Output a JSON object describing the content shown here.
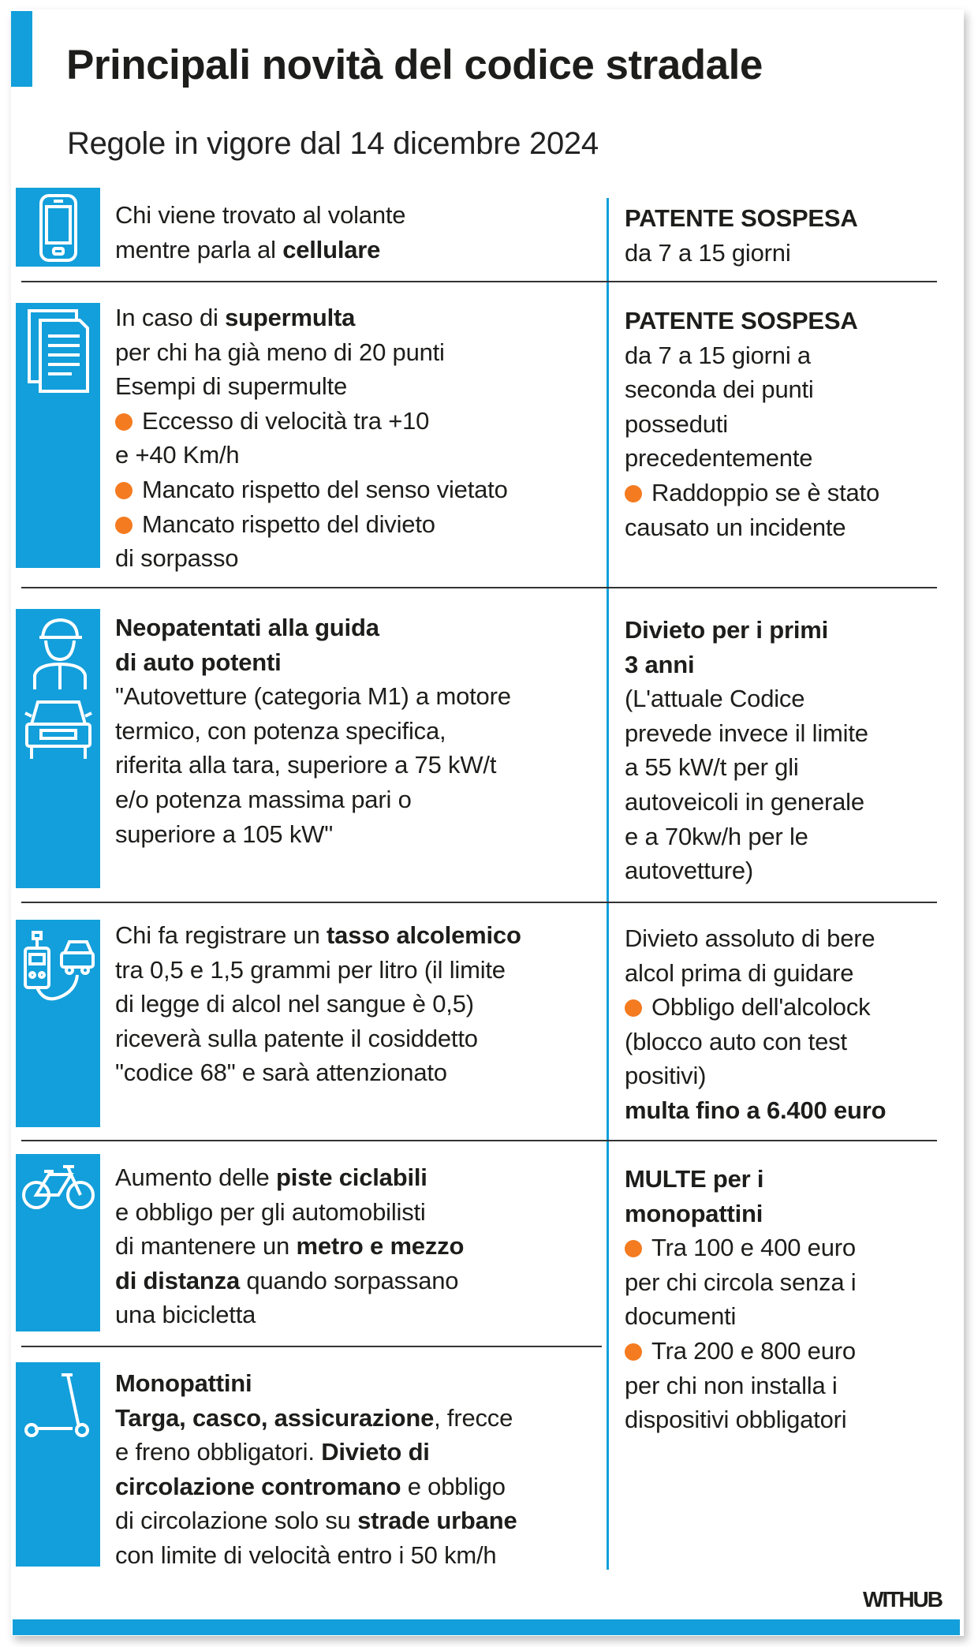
{
  "header": {
    "title": "Principali novità del codice stradale",
    "subtitle": "Regole in vigore dal 14 dicembre 2024"
  },
  "colors": {
    "accent": "#139fdb",
    "bullet": "#f47b20",
    "text": "#1d1d1b"
  },
  "rows": [
    {
      "icon": "smartphone-icon",
      "left": [
        [
          {
            "t": "Chi viene trovato al volante"
          }
        ],
        [
          {
            "t": "mentre parla al "
          },
          {
            "t": "cellulare",
            "b": true
          }
        ]
      ],
      "right": [
        [
          {
            "t": "PATENTE SOSPESA",
            "b": true
          }
        ],
        [
          {
            "t": "da 7 a 15 giorni"
          }
        ]
      ]
    },
    {
      "icon": "document-icon",
      "left": [
        [
          {
            "t": "In caso di "
          },
          {
            "t": "supermulta",
            "b": true
          }
        ],
        [
          {
            "t": "per chi ha già meno di 20 punti"
          }
        ],
        [
          {
            "t": "Esempi di supermulte"
          }
        ],
        [
          {
            "bullet": true
          },
          {
            "t": "Eccesso di velocità tra +10"
          }
        ],
        [
          {
            "t": "e +40 Km/h"
          }
        ],
        [
          {
            "bullet": true
          },
          {
            "t": "Mancato rispetto del senso vietato"
          }
        ],
        [
          {
            "bullet": true
          },
          {
            "t": "Mancato rispetto del divieto"
          }
        ],
        [
          {
            "t": "di sorpasso"
          }
        ]
      ],
      "right": [
        [
          {
            "t": "PATENTE SOSPESA",
            "b": true
          }
        ],
        [
          {
            "t": "da 7 a 15 giorni a"
          }
        ],
        [
          {
            "t": "seconda dei punti"
          }
        ],
        [
          {
            "t": "posseduti"
          }
        ],
        [
          {
            "t": "precedentemente"
          }
        ],
        [
          {
            "bullet": true
          },
          {
            "t": "Raddoppio se è stato"
          }
        ],
        [
          {
            "t": "causato un incidente"
          }
        ]
      ]
    },
    {
      "icon": "young-driver-car-icon",
      "left": [
        [
          {
            "t": "Neopatentati alla guida",
            "b": true
          }
        ],
        [
          {
            "t": "di auto potenti",
            "b": true
          }
        ],
        [
          {
            "t": "\"Autovetture (categoria M1) a motore"
          }
        ],
        [
          {
            "t": "termico, con potenza specifica,"
          }
        ],
        [
          {
            "t": "riferita alla tara, superiore a 75 kW/t"
          }
        ],
        [
          {
            "t": "e/o potenza massima pari o"
          }
        ],
        [
          {
            "t": "superiore a 105 kW\""
          }
        ]
      ],
      "right": [
        [
          {
            "t": "Divieto per i primi",
            "b": true
          }
        ],
        [
          {
            "t": "3 anni",
            "b": true
          }
        ],
        [
          {
            "t": "(L'attuale Codice"
          }
        ],
        [
          {
            "t": "prevede invece il limite"
          }
        ],
        [
          {
            "t": "a 55 kW/t  per gli"
          }
        ],
        [
          {
            "t": "autoveicoli in generale"
          }
        ],
        [
          {
            "t": "e a 70kw/h per le"
          }
        ],
        [
          {
            "t": "autovetture)"
          }
        ]
      ]
    },
    {
      "icon": "breathalyzer-icon",
      "left": [
        [
          {
            "t": "Chi fa registrare un "
          },
          {
            "t": "tasso alcolemico",
            "b": true
          }
        ],
        [
          {
            "t": "tra 0,5 e 1,5 grammi per litro (il limite"
          }
        ],
        [
          {
            "t": "di legge di alcol nel sangue è 0,5)"
          }
        ],
        [
          {
            "t": "riceverà sulla patente il cosiddetto"
          }
        ],
        [
          {
            "t": "\"codice 68\" e sarà attenzionato"
          }
        ]
      ],
      "right": [
        [
          {
            "t": "Divieto assoluto di bere"
          }
        ],
        [
          {
            "t": "alcol prima di guidare"
          }
        ],
        [
          {
            "bullet": true
          },
          {
            "t": "Obbligo dell'alcolock"
          }
        ],
        [
          {
            "t": "(blocco auto con test"
          }
        ],
        [
          {
            "t": "positivi)"
          }
        ],
        [
          {
            "t": "multa fino a 6.400 euro",
            "b": true
          }
        ]
      ]
    },
    {
      "icon": "bicycle-icon",
      "left": [
        [
          {
            "t": "Aumento delle "
          },
          {
            "t": "piste ciclabili",
            "b": true
          }
        ],
        [
          {
            "t": "e obbligo per gli automobilisti"
          }
        ],
        [
          {
            "t": "di mantenere un "
          },
          {
            "t": "metro e mezzo",
            "b": true
          }
        ],
        [
          {
            "t": "di distanza",
            "b": true
          },
          {
            "t": " quando sorpassano"
          }
        ],
        [
          {
            "t": "una bicicletta"
          }
        ]
      ],
      "right": [
        [
          {
            "t": "MULTE per i",
            "b": true
          }
        ],
        [
          {
            "t": "monopattini",
            "b": true
          }
        ],
        [
          {
            "bullet": true
          },
          {
            "t": "Tra 100 e 400 euro"
          }
        ],
        [
          {
            "t": "per chi circola senza i"
          }
        ],
        [
          {
            "t": "documenti"
          }
        ],
        [
          {
            "bullet": true
          },
          {
            "t": "Tra  200 e 800 euro"
          }
        ],
        [
          {
            "t": "per chi non installa i"
          }
        ],
        [
          {
            "t": "dispositivi obbligatori"
          }
        ]
      ]
    },
    {
      "icon": "scooter-icon",
      "left": [
        [
          {
            "t": "Monopattini",
            "b": true
          }
        ],
        [
          {
            "t": "Targa, casco, assicurazione",
            "b": true
          },
          {
            "t": ", frecce"
          }
        ],
        [
          {
            "t": "e freno obbligatori. "
          },
          {
            "t": "Divieto di",
            "b": true
          }
        ],
        [
          {
            "t": "circolazione contromano",
            "b": true
          },
          {
            "t": " e obbligo"
          }
        ],
        [
          {
            "t": "di circolazione solo su "
          },
          {
            "t": "strade urbane",
            "b": true
          }
        ],
        [
          {
            "t": "con limite di velocità entro i 50 km/h"
          }
        ]
      ]
    }
  ],
  "footer": {
    "brand": "WITHUB"
  }
}
